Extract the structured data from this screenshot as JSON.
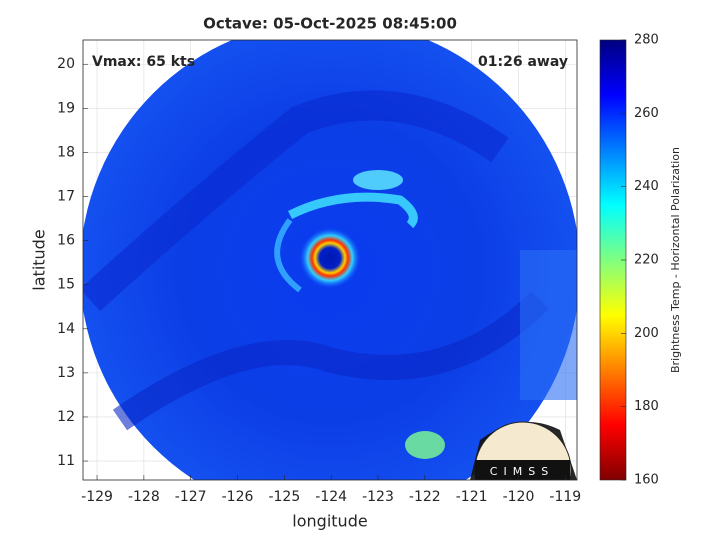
{
  "chart_data": {
    "type": "image",
    "title": "Octave: 05-Oct-2025 08:45:00",
    "annotations": [
      "Vmax: 65 kts",
      "01:26 away"
    ],
    "xlabel": "longitude",
    "ylabel": "latitude",
    "xlim": [
      -129.3,
      -118.75
    ],
    "ylim": [
      10.57,
      20.55
    ],
    "xticks": [
      -129,
      -128,
      -127,
      -126,
      -125,
      -124,
      -123,
      -122,
      -121,
      -120,
      -119
    ],
    "yticks": [
      11,
      12,
      13,
      14,
      15,
      16,
      17,
      18,
      19,
      20
    ],
    "grid": true,
    "colorbar": {
      "label": "Brightness Temp - Horizontal Polarization",
      "lim": [
        160,
        280
      ],
      "ticks": [
        160,
        180,
        200,
        220,
        240,
        260,
        280
      ]
    },
    "logo": "CIMSS"
  }
}
